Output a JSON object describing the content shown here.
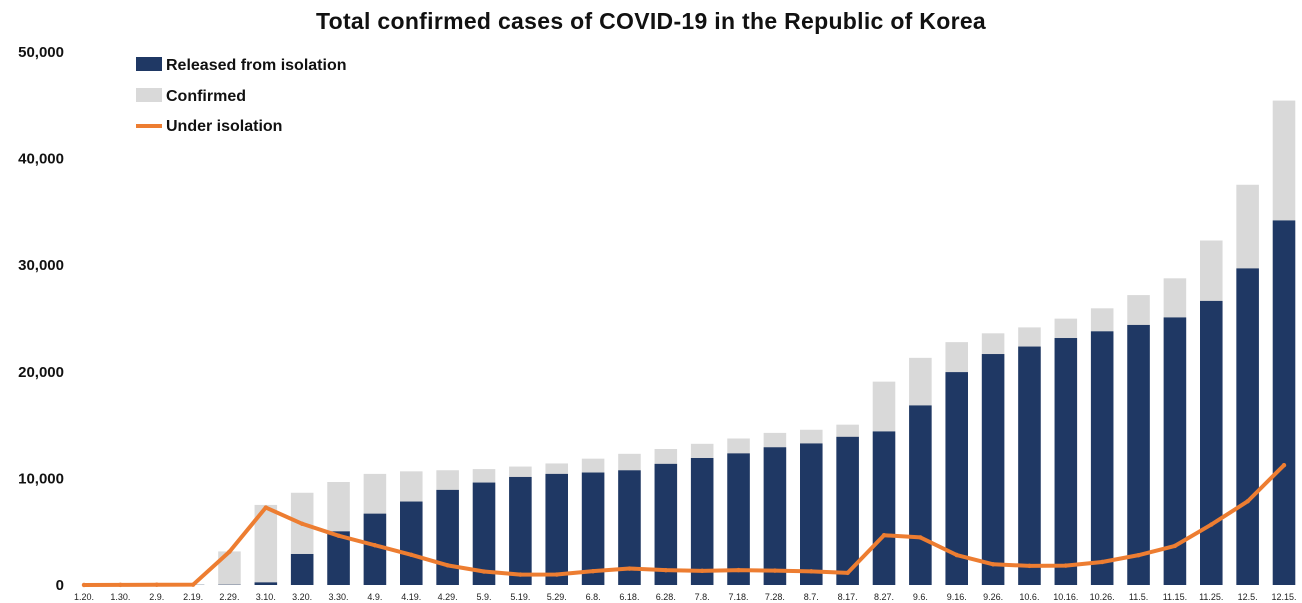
{
  "chart_data": {
    "type": "bar",
    "title": "Total confirmed cases of COVID-19 in the Republic of Korea",
    "xlabel": "",
    "ylabel": "",
    "ylim": [
      0,
      50000
    ],
    "yticks": [
      "0",
      "10,000",
      "20,000",
      "30,000",
      "40,000",
      "50,000"
    ],
    "grid": false,
    "legend_position": "top-left",
    "colors": {
      "released": "#1f3864",
      "confirmed": "#d9d9d9",
      "isolation": "#ed7d31"
    },
    "categories": [
      "1.20.",
      "1.30.",
      "2.9.",
      "2.19.",
      "2.29.",
      "3.10.",
      "3.20.",
      "3.30.",
      "4.9.",
      "4.19.",
      "4.29.",
      "5.9.",
      "5.19.",
      "5.29.",
      "6.8.",
      "6.18.",
      "6.28.",
      "7.8.",
      "7.18.",
      "7.28.",
      "8.7.",
      "8.17.",
      "8.27.",
      "9.6.",
      "9.16.",
      "9.26.",
      "10.6.",
      "10.16.",
      "10.26.",
      "11.5.",
      "11.15.",
      "11.25.",
      "12.5.",
      "12.15."
    ],
    "series": [
      {
        "name": "Released from isolation",
        "type": "bar",
        "values": [
          0,
          0,
          3,
          16,
          27,
          247,
          2909,
          5033,
          6694,
          7829,
          8922,
          9610,
          10135,
          10422,
          10552,
          10760,
          11364,
          11914,
          12348,
          12920,
          13280,
          13901,
          14406,
          16846,
          19970,
          21666,
          22369,
          23169,
          23797,
          24395,
          25100,
          26650,
          29700,
          34200
        ]
      },
      {
        "name": "Confirmed",
        "type": "bar",
        "values": [
          1,
          11,
          27,
          46,
          3150,
          7513,
          8652,
          9661,
          10423,
          10661,
          10765,
          10874,
          11110,
          11402,
          11852,
          12306,
          12757,
          13244,
          13745,
          14269,
          14562,
          15039,
          19077,
          21310,
          22783,
          23611,
          24164,
          24988,
          25955,
          27195,
          28769,
          32318,
          37546,
          45442
        ]
      },
      {
        "name": "Under isolation",
        "type": "line",
        "values": [
          1,
          11,
          24,
          30,
          3123,
          7266,
          5743,
          4628,
          3729,
          2832,
          1843,
          1264,
          975,
          980,
          1300,
          1546,
          1393,
          1330,
          1397,
          1349,
          1282,
          1138,
          4671,
          4464,
          2813,
          1945,
          1795,
          1819,
          2158,
          2800,
          3669,
          5668,
          7846,
          11242
        ]
      }
    ]
  }
}
